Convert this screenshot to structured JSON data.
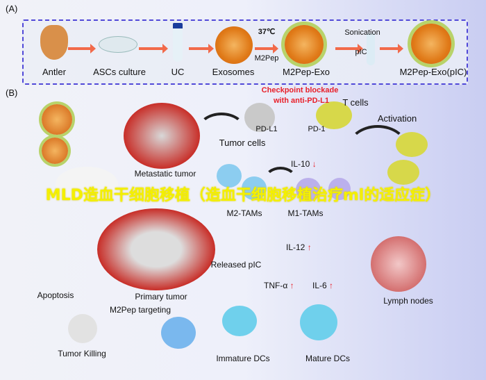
{
  "panel_a": {
    "label": "(A)",
    "steps": [
      "Antler",
      "ASCs culture",
      "UC",
      "Exosomes",
      "M2Pep-Exo",
      "M2Pep-Exo(pIC)"
    ],
    "temperature": "37℃",
    "peptide": "M2Pep",
    "sonication": "Sonication",
    "pic": "pIC"
  },
  "panel_b": {
    "label": "(B)",
    "checkpoint_line1": "Checkpoint blockade",
    "checkpoint_line2": "with anti-PD-L1",
    "t_cells": "T cells",
    "pd_l1": "PD-L1",
    "pd_1": "PD-1",
    "activation": "Activation",
    "tumor_cells": "Tumor cells",
    "metastatic_tumor": "Metastatic tumor",
    "il10": "IL-10",
    "m2_tams": "M2-TAMs",
    "m1_tams": "M1-TAMs",
    "il12": "IL-12",
    "released_pic": "Released pIC",
    "tnf": "TNF-α",
    "il6": "IL-6",
    "lymph_nodes": "Lymph nodes",
    "apoptosis": "Apoptosis",
    "primary_tumor": "Primary tumor",
    "m2pep_targeting": "M2Pep targeting",
    "tumor_killing": "Tumor Killing",
    "immature_dcs": "Immature DCs",
    "mature_dcs": "Mature DCs",
    "down_arrow": "↓",
    "up_arrow": "↑"
  },
  "overlay_text": "MLD造血干细胞移植（造血干细胞移植治疗ml的适应症）",
  "colors": {
    "dashed_border": "#5048d8",
    "process_arrow": "#f26a4a",
    "highlight_red": "#e8202a",
    "overlay": "#f4f000"
  }
}
